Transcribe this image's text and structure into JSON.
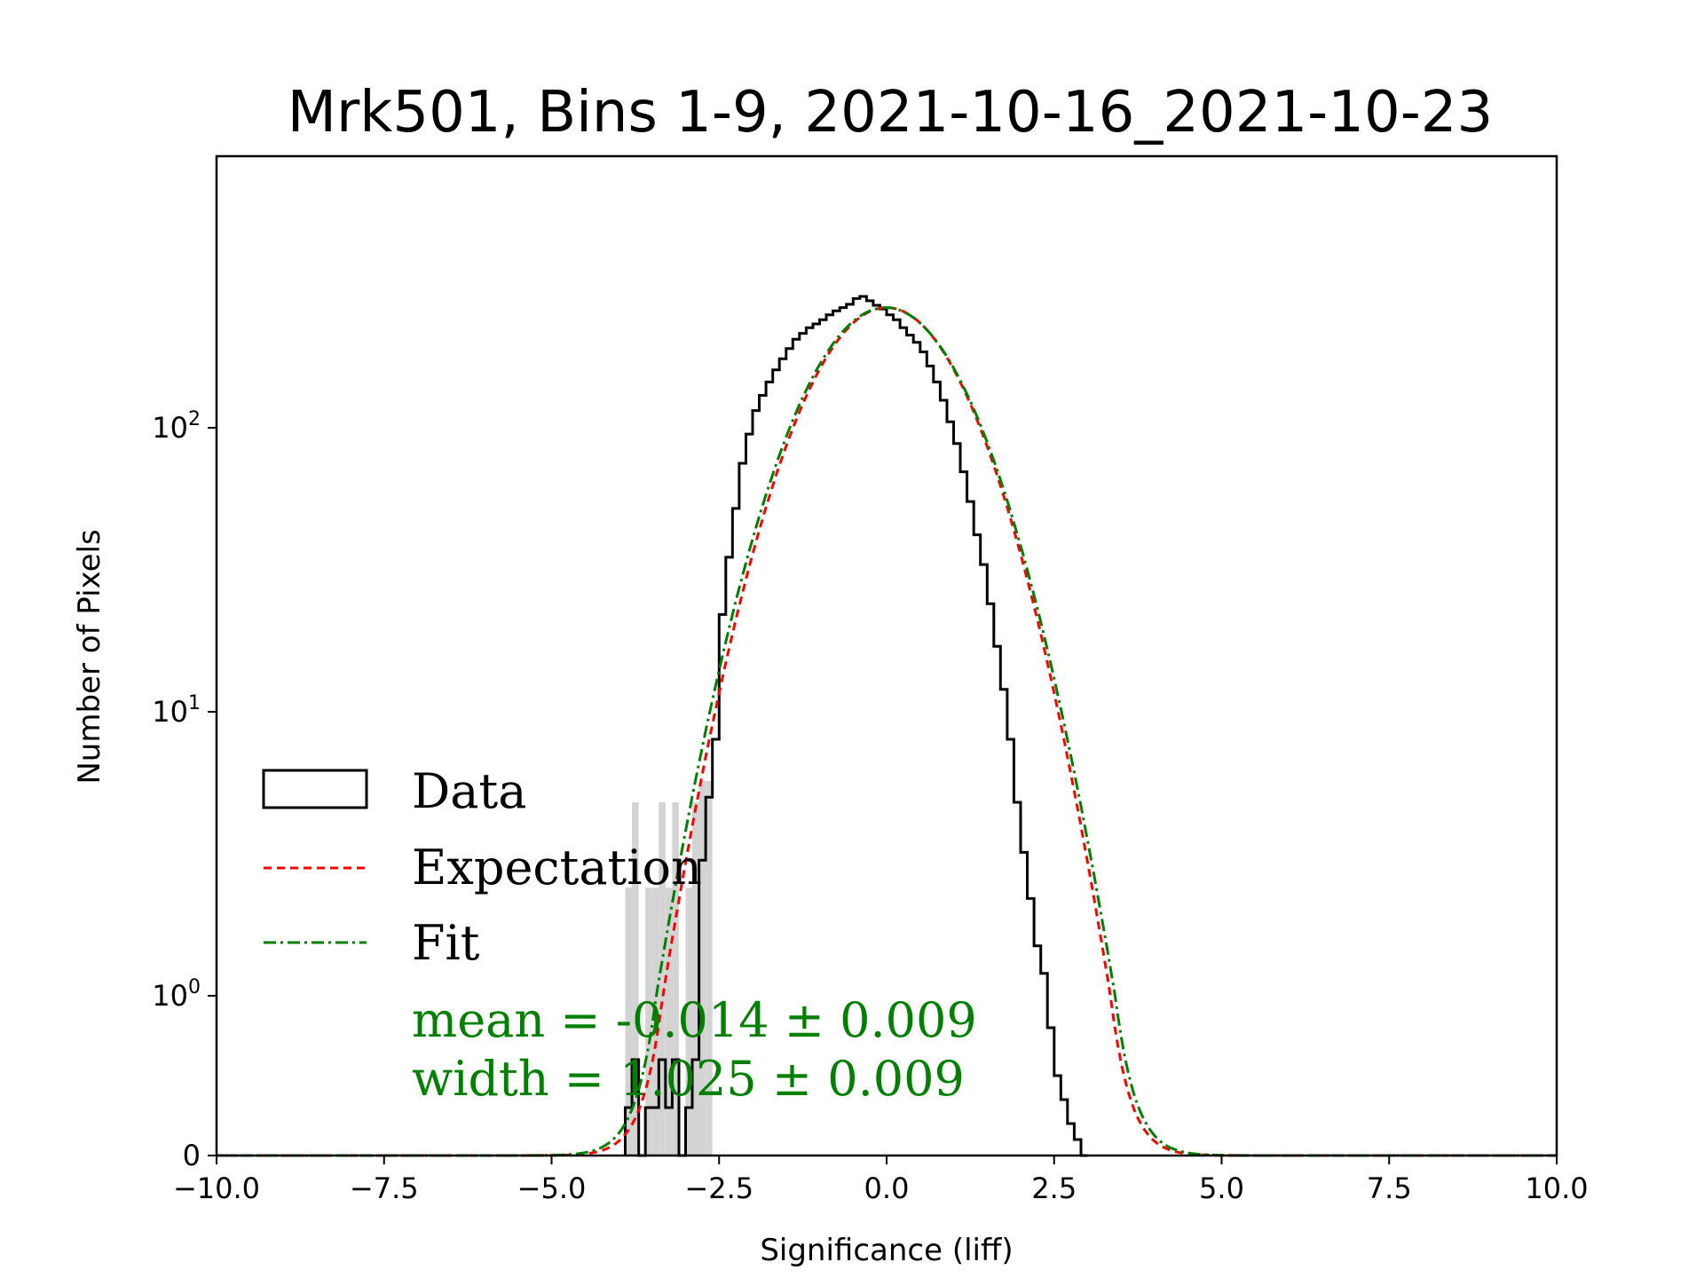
{
  "chart_data": {
    "type": "histogram",
    "title": "Mrk501, Bins 1-9, 2021-10-16_2021-10-23",
    "xlabel": "Significance (liff)",
    "ylabel": "Number of Pixels",
    "xlim": [
      -10.0,
      10.0
    ],
    "yscale": "symlog",
    "x_ticks": [
      "−10.0",
      "−7.5",
      "−5.0",
      "−2.5",
      "0.0",
      "2.5",
      "5.0",
      "7.5",
      "10.0"
    ],
    "y_ticks": [
      {
        "base": "10",
        "exp": "2",
        "value": 100
      },
      {
        "base": "10",
        "exp": "1",
        "value": 10
      },
      {
        "base": "10",
        "exp": "0",
        "value": 1
      },
      {
        "base": "0",
        "exp": "",
        "value": 0
      }
    ],
    "legend": [
      {
        "label": "Data",
        "style": "step",
        "color": "#000000"
      },
      {
        "label": "Expectation",
        "style": "dashed",
        "color": "#ff0000"
      },
      {
        "label": "Fit",
        "style": "dashdot",
        "color": "#008000"
      }
    ],
    "annotations": {
      "mean_text": "mean = -0.014 ± 0.009",
      "width_text": "width = 1.025 ± 0.009",
      "color": "#008000"
    },
    "expectation": {
      "mean": 0.0,
      "sigma": 1.0,
      "peak": 265
    },
    "fit": {
      "mean": -0.014,
      "sigma": 1.025,
      "peak": 265
    },
    "data_series": {
      "bin_width": 0.1,
      "centers": [
        -3.85,
        -3.75,
        -3.65,
        -3.55,
        -3.45,
        -3.35,
        -3.25,
        -3.15,
        -3.05,
        -2.95,
        -2.85,
        -2.75,
        -2.65,
        -2.55,
        -2.45,
        -2.35,
        -2.25,
        -2.15,
        -2.05,
        -1.95,
        -1.85,
        -1.75,
        -1.65,
        -1.55,
        -1.45,
        -1.35,
        -1.25,
        -1.15,
        -1.05,
        -0.95,
        -0.85,
        -0.75,
        -0.65,
        -0.55,
        -0.45,
        -0.35,
        -0.25,
        -0.15,
        -0.05,
        0.05,
        0.15,
        0.25,
        0.35,
        0.45,
        0.55,
        0.65,
        0.75,
        0.85,
        0.95,
        1.05,
        1.15,
        1.25,
        1.35,
        1.45,
        1.55,
        1.65,
        1.75,
        1.85,
        1.95,
        2.05,
        2.15,
        2.25,
        2.35,
        2.45,
        2.55,
        2.65,
        2.75,
        2.85,
        2.95
      ],
      "counts": [
        0.3,
        0.6,
        0,
        0.3,
        0.3,
        0.6,
        0.3,
        0.6,
        0,
        0.3,
        0.6,
        3,
        5,
        8,
        22,
        35,
        52,
        75,
        95,
        115,
        130,
        145,
        160,
        175,
        190,
        205,
        215,
        225,
        232,
        240,
        250,
        258,
        265,
        272,
        285,
        290,
        280,
        270,
        262,
        250,
        240,
        225,
        212,
        200,
        185,
        165,
        145,
        125,
        105,
        88,
        70,
        55,
        42,
        33,
        24,
        17,
        12,
        8,
        4.8,
        3.2,
        2.2,
        1.5,
        1.2,
        0.8,
        0.5,
        0.35,
        0.2,
        0.1,
        0
      ]
    }
  }
}
